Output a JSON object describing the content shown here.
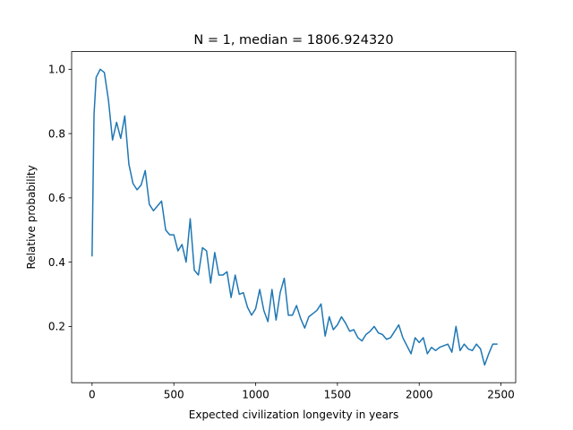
{
  "chart_data": {
    "type": "line",
    "title": "N = 1, median = 1806.924320",
    "xlabel": "Expected civilization longevity in years",
    "ylabel": "Relative probability",
    "xlim": [
      -125,
      2590
    ],
    "ylim": [
      0.025,
      1.055
    ],
    "xticks": [
      0,
      500,
      1000,
      1500,
      2000,
      2500
    ],
    "xtick_labels": [
      "0",
      "500",
      "1000",
      "1500",
      "2000",
      "2500"
    ],
    "yticks": [
      0.2,
      0.4,
      0.6,
      0.8,
      1.0
    ],
    "ytick_labels": [
      "0.2",
      "0.4",
      "0.6",
      "0.8",
      "1.0"
    ],
    "grid": false,
    "line_color": "#1f77b4",
    "series": [
      {
        "x": [
          0,
          12,
          25,
          50,
          75,
          100,
          125,
          150,
          175,
          200,
          225,
          250,
          275,
          300,
          325,
          350,
          375,
          400,
          425,
          450,
          475,
          500,
          525,
          550,
          575,
          600,
          625,
          650,
          675,
          700,
          725,
          750,
          775,
          800,
          825,
          850,
          875,
          900,
          925,
          950,
          975,
          1000,
          1025,
          1050,
          1075,
          1100,
          1125,
          1150,
          1175,
          1200,
          1225,
          1250,
          1275,
          1300,
          1325,
          1350,
          1375,
          1400,
          1425,
          1450,
          1475,
          1500,
          1525,
          1550,
          1575,
          1600,
          1625,
          1650,
          1675,
          1700,
          1725,
          1750,
          1775,
          1800,
          1825,
          1850,
          1875,
          1900,
          1925,
          1950,
          1975,
          2000,
          2025,
          2050,
          2075,
          2100,
          2125,
          2150,
          2175,
          2200,
          2225,
          2250,
          2275,
          2300,
          2325,
          2350,
          2375,
          2400,
          2425,
          2450,
          2475
        ],
        "values": [
          0.42,
          0.86,
          0.975,
          1.0,
          0.99,
          0.905,
          0.78,
          0.835,
          0.785,
          0.855,
          0.705,
          0.645,
          0.625,
          0.64,
          0.685,
          0.58,
          0.56,
          0.575,
          0.59,
          0.5,
          0.485,
          0.485,
          0.435,
          0.455,
          0.4,
          0.535,
          0.375,
          0.36,
          0.445,
          0.435,
          0.335,
          0.43,
          0.36,
          0.36,
          0.37,
          0.29,
          0.36,
          0.3,
          0.305,
          0.26,
          0.235,
          0.255,
          0.315,
          0.25,
          0.215,
          0.315,
          0.22,
          0.305,
          0.35,
          0.235,
          0.235,
          0.265,
          0.225,
          0.195,
          0.23,
          0.24,
          0.25,
          0.27,
          0.17,
          0.23,
          0.19,
          0.205,
          0.23,
          0.21,
          0.185,
          0.19,
          0.165,
          0.155,
          0.175,
          0.185,
          0.2,
          0.18,
          0.175,
          0.16,
          0.165,
          0.185,
          0.205,
          0.165,
          0.14,
          0.115,
          0.165,
          0.15,
          0.165,
          0.115,
          0.135,
          0.125,
          0.135,
          0.14,
          0.145,
          0.12,
          0.2,
          0.125,
          0.145,
          0.13,
          0.125,
          0.145,
          0.13,
          0.08,
          0.115,
          0.145,
          0.145
        ]
      }
    ]
  }
}
